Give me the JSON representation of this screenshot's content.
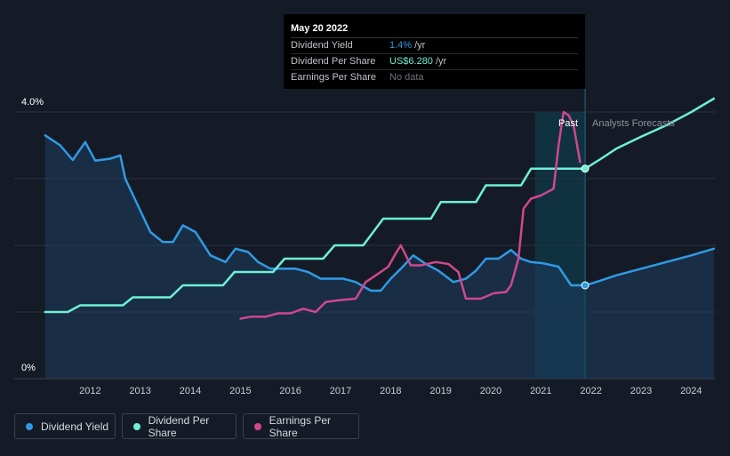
{
  "tooltip": {
    "date": "May 20 2022",
    "rows": [
      {
        "label": "Dividend Yield",
        "value": "1.4%",
        "unit": "/yr"
      },
      {
        "label": "Dividend Per Share",
        "value": "US$6.280",
        "unit": "/yr"
      },
      {
        "label": "Earnings Per Share",
        "value": "No data",
        "unit": ""
      }
    ]
  },
  "labels": {
    "past": "Past",
    "forecast": "Analysts Forecasts"
  },
  "legend": [
    {
      "label": "Dividend Yield",
      "color": "#2f9be5"
    },
    {
      "label": "Dividend Per Share",
      "color": "#6ef0d6"
    },
    {
      "label": "Earnings Per Share",
      "color": "#d0478f"
    }
  ],
  "chart_data": {
    "type": "line",
    "x_ticks": [
      "2012",
      "2013",
      "2014",
      "2015",
      "2016",
      "2017",
      "2018",
      "2019",
      "2020",
      "2021",
      "2022",
      "2023",
      "2024"
    ],
    "y_ticks": [
      "0%",
      "4.0%"
    ],
    "ylim": [
      0,
      4.0
    ],
    "xlim": [
      2011.55,
      2024.95
    ],
    "forecast_start": 2022.38,
    "highlight_range": [
      2021.38,
      2022.38
    ],
    "grid": true,
    "legend_position": "bottom-left",
    "series": [
      {
        "name": "Dividend Yield",
        "color": "#2f9be5",
        "area": true,
        "points": [
          [
            2011.6,
            3.65
          ],
          [
            2011.9,
            3.5
          ],
          [
            2012.15,
            3.28
          ],
          [
            2012.4,
            3.55
          ],
          [
            2012.6,
            3.27
          ],
          [
            2012.9,
            3.3
          ],
          [
            2013.1,
            3.35
          ],
          [
            2013.2,
            3.0
          ],
          [
            2013.45,
            2.6
          ],
          [
            2013.7,
            2.2
          ],
          [
            2013.95,
            2.05
          ],
          [
            2014.15,
            2.05
          ],
          [
            2014.35,
            2.3
          ],
          [
            2014.6,
            2.2
          ],
          [
            2014.9,
            1.85
          ],
          [
            2015.2,
            1.75
          ],
          [
            2015.4,
            1.95
          ],
          [
            2015.65,
            1.9
          ],
          [
            2015.85,
            1.75
          ],
          [
            2016.1,
            1.65
          ],
          [
            2016.35,
            1.65
          ],
          [
            2016.6,
            1.65
          ],
          [
            2016.85,
            1.6
          ],
          [
            2017.1,
            1.5
          ],
          [
            2017.35,
            1.5
          ],
          [
            2017.55,
            1.5
          ],
          [
            2017.8,
            1.45
          ],
          [
            2018.1,
            1.32
          ],
          [
            2018.3,
            1.32
          ],
          [
            2018.5,
            1.5
          ],
          [
            2018.7,
            1.65
          ],
          [
            2018.95,
            1.85
          ],
          [
            2019.2,
            1.72
          ],
          [
            2019.45,
            1.62
          ],
          [
            2019.75,
            1.45
          ],
          [
            2020.0,
            1.5
          ],
          [
            2020.2,
            1.62
          ],
          [
            2020.4,
            1.8
          ],
          [
            2020.65,
            1.8
          ],
          [
            2020.9,
            1.93
          ],
          [
            2021.1,
            1.8
          ],
          [
            2021.3,
            1.75
          ],
          [
            2021.55,
            1.73
          ],
          [
            2021.85,
            1.68
          ],
          [
            2022.1,
            1.4
          ],
          [
            2022.38,
            1.4
          ],
          [
            2022.6,
            1.45
          ],
          [
            2023.0,
            1.55
          ],
          [
            2023.5,
            1.65
          ],
          [
            2024.0,
            1.75
          ],
          [
            2024.5,
            1.85
          ],
          [
            2024.95,
            1.95
          ]
        ]
      },
      {
        "name": "Dividend Per Share",
        "color": "#6ef0d6",
        "area": false,
        "points": [
          [
            2011.6,
            1.0
          ],
          [
            2012.05,
            1.0
          ],
          [
            2012.3,
            1.1
          ],
          [
            2013.15,
            1.1
          ],
          [
            2013.35,
            1.22
          ],
          [
            2014.1,
            1.22
          ],
          [
            2014.35,
            1.4
          ],
          [
            2015.15,
            1.4
          ],
          [
            2015.38,
            1.6
          ],
          [
            2016.15,
            1.6
          ],
          [
            2016.38,
            1.8
          ],
          [
            2017.15,
            1.8
          ],
          [
            2017.38,
            2.0
          ],
          [
            2017.95,
            2.0
          ],
          [
            2018.15,
            2.2
          ],
          [
            2018.35,
            2.4
          ],
          [
            2019.3,
            2.4
          ],
          [
            2019.5,
            2.65
          ],
          [
            2020.2,
            2.65
          ],
          [
            2020.4,
            2.9
          ],
          [
            2021.1,
            2.9
          ],
          [
            2021.3,
            3.15
          ],
          [
            2022.38,
            3.15
          ],
          [
            2022.7,
            3.3
          ],
          [
            2023.0,
            3.45
          ],
          [
            2023.5,
            3.63
          ],
          [
            2024.0,
            3.8
          ],
          [
            2024.5,
            4.0
          ],
          [
            2024.95,
            4.2
          ]
        ]
      },
      {
        "name": "Earnings Per Share",
        "color": "#d0478f",
        "area": false,
        "points": [
          [
            2015.5,
            0.9
          ],
          [
            2015.7,
            0.93
          ],
          [
            2016.0,
            0.93
          ],
          [
            2016.25,
            0.98
          ],
          [
            2016.5,
            0.98
          ],
          [
            2016.75,
            1.05
          ],
          [
            2017.0,
            1.0
          ],
          [
            2017.2,
            1.15
          ],
          [
            2017.5,
            1.18
          ],
          [
            2017.8,
            1.2
          ],
          [
            2018.0,
            1.45
          ],
          [
            2018.2,
            1.55
          ],
          [
            2018.45,
            1.68
          ],
          [
            2018.6,
            1.88
          ],
          [
            2018.7,
            2.0
          ],
          [
            2018.9,
            1.7
          ],
          [
            2019.1,
            1.7
          ],
          [
            2019.4,
            1.75
          ],
          [
            2019.65,
            1.72
          ],
          [
            2019.85,
            1.6
          ],
          [
            2020.0,
            1.2
          ],
          [
            2020.3,
            1.2
          ],
          [
            2020.55,
            1.28
          ],
          [
            2020.8,
            1.3
          ],
          [
            2020.9,
            1.4
          ],
          [
            2021.05,
            1.8
          ],
          [
            2021.15,
            2.55
          ],
          [
            2021.3,
            2.7
          ],
          [
            2021.5,
            2.75
          ],
          [
            2021.75,
            2.85
          ],
          [
            2021.85,
            3.5
          ],
          [
            2021.95,
            4.0
          ],
          [
            2022.05,
            3.95
          ],
          [
            2022.15,
            3.8
          ],
          [
            2022.28,
            3.25
          ]
        ]
      }
    ]
  }
}
